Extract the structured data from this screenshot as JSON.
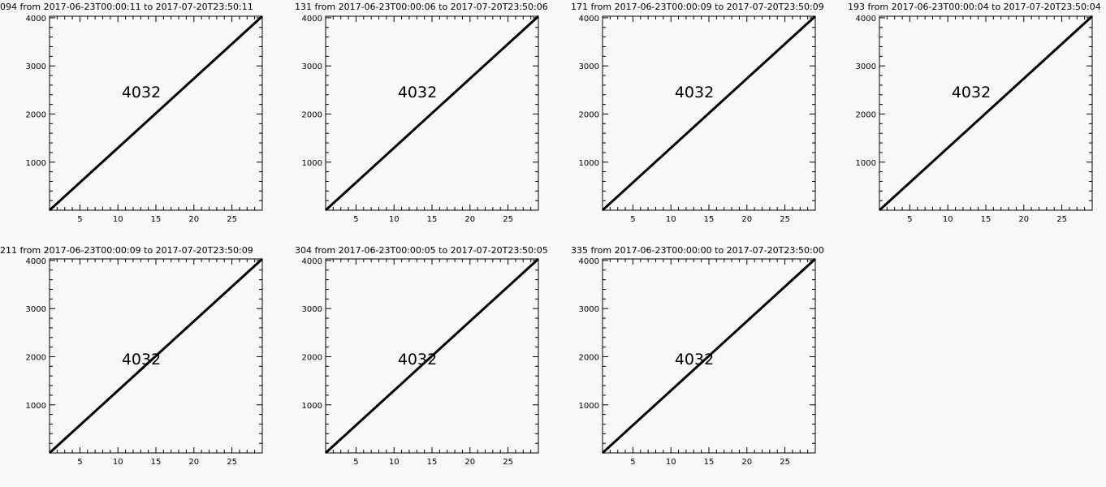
{
  "chart_data": [
    {
      "type": "line",
      "title": "094 from 2017-06-23T00:00:11 to 2017-07-20T23:50:11",
      "annotation": "4032",
      "x": [
        1,
        29
      ],
      "y": [
        1,
        4032
      ],
      "xlim": [
        1,
        29
      ],
      "ylim": [
        1,
        4032
      ],
      "xticks": [
        5,
        10,
        15,
        20,
        25
      ],
      "yticks": [
        1000,
        2000,
        3000,
        4000
      ]
    },
    {
      "type": "line",
      "title": "131 from 2017-06-23T00:00:06 to 2017-07-20T23:50:06",
      "annotation": "4032",
      "x": [
        1,
        29
      ],
      "y": [
        1,
        4032
      ],
      "xlim": [
        1,
        29
      ],
      "ylim": [
        1,
        4032
      ],
      "xticks": [
        5,
        10,
        15,
        20,
        25
      ],
      "yticks": [
        1000,
        2000,
        3000,
        4000
      ]
    },
    {
      "type": "line",
      "title": "171 from 2017-06-23T00:00:09 to 2017-07-20T23:50:09",
      "annotation": "4032",
      "x": [
        1,
        29
      ],
      "y": [
        1,
        4032
      ],
      "xlim": [
        1,
        29
      ],
      "ylim": [
        1,
        4032
      ],
      "xticks": [
        5,
        10,
        15,
        20,
        25
      ],
      "yticks": [
        1000,
        2000,
        3000,
        4000
      ]
    },
    {
      "type": "line",
      "title": "193 from 2017-06-23T00:00:04 to 2017-07-20T23:50:04",
      "annotation": "4032",
      "x": [
        1,
        29
      ],
      "y": [
        1,
        4032
      ],
      "xlim": [
        1,
        29
      ],
      "ylim": [
        1,
        4032
      ],
      "xticks": [
        5,
        10,
        15,
        20,
        25
      ],
      "yticks": [
        1000,
        2000,
        3000,
        4000
      ]
    },
    {
      "type": "line",
      "title": "211 from 2017-06-23T00:00:09 to 2017-07-20T23:50:09",
      "annotation": "4032",
      "x": [
        1,
        29
      ],
      "y": [
        1,
        4032
      ],
      "xlim": [
        1,
        29
      ],
      "ylim": [
        1,
        4032
      ],
      "xticks": [
        5,
        10,
        15,
        20,
        25
      ],
      "yticks": [
        1000,
        2000,
        3000,
        4000
      ]
    },
    {
      "type": "line",
      "title": "304 from 2017-06-23T00:00:05 to 2017-07-20T23:50:05",
      "annotation": "4032",
      "x": [
        1,
        29
      ],
      "y": [
        1,
        4032
      ],
      "xlim": [
        1,
        29
      ],
      "ylim": [
        1,
        4032
      ],
      "xticks": [
        5,
        10,
        15,
        20,
        25
      ],
      "yticks": [
        1000,
        2000,
        3000,
        4000
      ]
    },
    {
      "type": "line",
      "title": "335 from 2017-06-23T00:00:00 to 2017-07-20T23:50:00",
      "annotation": "4032",
      "x": [
        1,
        29
      ],
      "y": [
        1,
        4032
      ],
      "xlim": [
        1,
        29
      ],
      "ylim": [
        1,
        4032
      ],
      "xticks": [
        5,
        10,
        15,
        20,
        25
      ],
      "yticks": [
        1000,
        2000,
        3000,
        4000
      ]
    }
  ]
}
